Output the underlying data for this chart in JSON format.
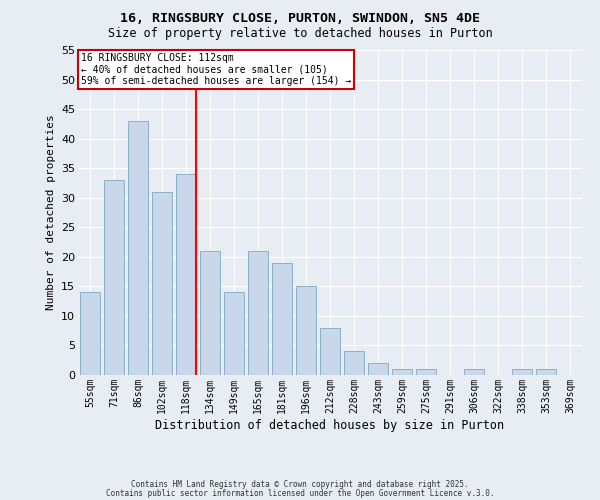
{
  "title_line1": "16, RINGSBURY CLOSE, PURTON, SWINDON, SN5 4DE",
  "title_line2": "Size of property relative to detached houses in Purton",
  "xlabel": "Distribution of detached houses by size in Purton",
  "ylabel": "Number of detached properties",
  "categories": [
    "55sqm",
    "71sqm",
    "86sqm",
    "102sqm",
    "118sqm",
    "134sqm",
    "149sqm",
    "165sqm",
    "181sqm",
    "196sqm",
    "212sqm",
    "228sqm",
    "243sqm",
    "259sqm",
    "275sqm",
    "291sqm",
    "306sqm",
    "322sqm",
    "338sqm",
    "353sqm",
    "369sqm"
  ],
  "values": [
    14,
    33,
    43,
    31,
    34,
    21,
    14,
    21,
    19,
    15,
    8,
    4,
    2,
    1,
    1,
    0,
    1,
    0,
    1,
    1,
    0
  ],
  "bar_color": "#c8d8ea",
  "bar_edge_color": "#8ab0cc",
  "red_line_index": 4,
  "annotation_title": "16 RINGSBURY CLOSE: 112sqm",
  "annotation_line2": "← 40% of detached houses are smaller (105)",
  "annotation_line3": "59% of semi-detached houses are larger (154) →",
  "annotation_box_color": "#ffffff",
  "annotation_box_edge": "#cc0000",
  "ylim": [
    0,
    55
  ],
  "yticks": [
    0,
    5,
    10,
    15,
    20,
    25,
    30,
    35,
    40,
    45,
    50,
    55
  ],
  "background_color": "#e8edf4",
  "grid_color": "#ffffff",
  "footer_line1": "Contains HM Land Registry data © Crown copyright and database right 2025.",
  "footer_line2": "Contains public sector information licensed under the Open Government Licence v.3.0."
}
